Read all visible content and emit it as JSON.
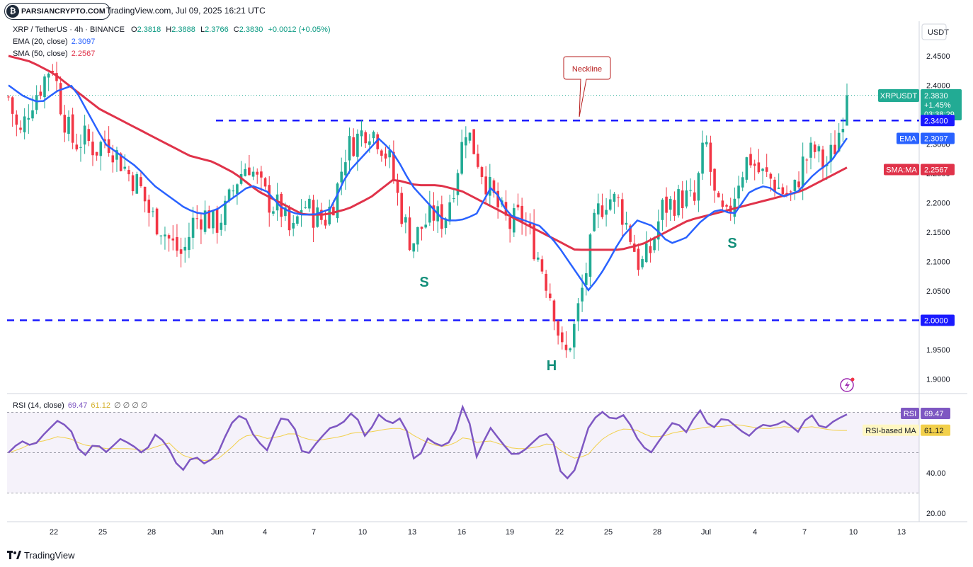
{
  "header": {
    "logo_text": "PARSIANCRYPTO.COM",
    "published": "TradingView.com, Jul 09, 2025 16:21 UTC"
  },
  "legend": {
    "symbol": "XRP / TetherUS · 4h · BINANCE",
    "o_label": "O",
    "o": "2.3818",
    "h_label": "H",
    "h": "2.3888",
    "l_label": "L",
    "l": "2.3766",
    "c_label": "C",
    "c": "2.3830",
    "change": "+0.0012 (+0.05%)",
    "ema_label": "EMA (20, close)",
    "ema_value": "2.3097",
    "sma_label": "SMA (50, close)",
    "sma_value": "2.2567",
    "rsi_label": "RSI (14, close)",
    "rsi_value": "69.47",
    "rsi_ma_value": "61.12",
    "rsi_extra": "∅ ∅ ∅ ∅"
  },
  "currency": "USDT",
  "price_axis": [
    "2.4500",
    "2.4000",
    "2.3500",
    "2.3000",
    "2.2500",
    "2.2000",
    "2.1500",
    "2.1000",
    "2.0500",
    "2.0000",
    "1.9500",
    "1.9000"
  ],
  "rsi_axis": [
    "60.00",
    "40.00",
    "20.00"
  ],
  "time_axis": [
    "22",
    "25",
    "28",
    "Jun",
    "4",
    "7",
    "10",
    "13",
    "16",
    "19",
    "22",
    "25",
    "28",
    "Jul",
    "4",
    "7",
    "10",
    "13"
  ],
  "price_tags": {
    "symbol_tag": "XRPUSDT",
    "last": "2.3830",
    "change_pct": "+1.45%",
    "countdown": "03:38:29",
    "level_high": "2.3400",
    "level_low": "2.0000",
    "ema_tag": "EMA",
    "ema_value": "2.3097",
    "sma_tag": "SMA:MA",
    "sma_value": "2.2567",
    "rsi_tag": "RSI",
    "rsi_value": "69.47",
    "rsi_ma_tag": "RSI-based MA",
    "rsi_ma_value": "61.12"
  },
  "annotations": {
    "neckline": "Neckline",
    "left_shoulder": "S",
    "head": "H",
    "right_shoulder": "S"
  },
  "footer": {
    "brand": "TradingView"
  },
  "colors": {
    "up": "#22ab94",
    "down": "#f23645",
    "ema": "#2962ff",
    "sma": "#e0334a",
    "level": "#1a1aff",
    "rsi": "#7e57c2",
    "rsi_ma": "#f2d04b",
    "pattern": "#138f7a"
  },
  "chart_data": {
    "type": "candlestick",
    "timeframe": "4h",
    "ylim": [
      1.88,
      2.48
    ],
    "levels": [
      2.34,
      2.0
    ],
    "close_path": [
      2.38,
      2.31,
      2.37,
      2.4,
      2.44,
      2.35,
      2.3,
      2.31,
      2.29,
      2.31,
      2.28,
      2.25,
      2.23,
      2.18,
      2.16,
      2.13,
      2.11,
      2.17,
      2.18,
      2.16,
      2.19,
      2.24,
      2.27,
      2.23,
      2.2,
      2.19,
      2.14,
      2.2,
      2.18,
      2.17,
      2.21,
      2.29,
      2.31,
      2.33,
      2.31,
      2.27,
      2.19,
      2.13,
      2.16,
      2.18,
      2.17,
      2.24,
      2.33,
      2.28,
      2.23,
      2.19,
      2.16,
      2.18,
      2.14,
      2.09,
      2.03,
      1.93,
      1.99,
      2.08,
      2.18,
      2.21,
      2.2,
      2.15,
      2.09,
      2.12,
      2.19,
      2.2,
      2.21,
      2.2,
      2.31,
      2.19,
      2.17,
      2.24,
      2.28,
      2.25,
      2.24,
      2.22,
      2.21,
      2.27,
      2.29,
      2.26,
      2.3,
      2.38
    ],
    "ema20_path": [
      2.4,
      2.38,
      2.37,
      2.39,
      2.4,
      2.35,
      2.3,
      2.28,
      2.26,
      2.23,
      2.21,
      2.19,
      2.18,
      2.19,
      2.21,
      2.23,
      2.22,
      2.19,
      2.18,
      2.18,
      2.19,
      2.25,
      2.28,
      2.31,
      2.28,
      2.23,
      2.2,
      2.17,
      2.17,
      2.18,
      2.23,
      2.18,
      2.17,
      2.16,
      2.13,
      2.09,
      2.05,
      2.09,
      2.14,
      2.17,
      2.16,
      2.13,
      2.14,
      2.17,
      2.19,
      2.18,
      2.22,
      2.23,
      2.21,
      2.22,
      2.25,
      2.27,
      2.31
    ],
    "sma50_path": [
      2.45,
      2.44,
      2.42,
      2.39,
      2.36,
      2.34,
      2.32,
      2.3,
      2.28,
      2.27,
      2.25,
      2.22,
      2.2,
      2.18,
      2.18,
      2.19,
      2.21,
      2.24,
      2.23,
      2.23,
      2.22,
      2.2,
      2.18,
      2.16,
      2.14,
      2.12,
      2.12,
      2.12,
      2.13,
      2.15,
      2.17,
      2.18,
      2.19,
      2.2,
      2.21,
      2.22,
      2.24,
      2.26
    ],
    "rsi14_path": [
      50,
      56,
      53,
      60,
      66,
      62,
      47,
      55,
      50,
      57,
      54,
      49,
      60,
      52,
      40,
      49,
      44,
      50,
      64,
      70,
      57,
      51,
      67,
      66,
      47,
      55,
      62,
      64,
      71,
      57,
      69,
      64,
      68,
      44,
      57,
      53,
      56,
      76,
      47,
      63,
      55,
      48,
      52,
      58,
      60,
      35,
      42,
      62,
      71,
      66,
      69,
      57,
      49,
      58,
      66,
      60,
      72,
      61,
      68,
      63,
      58,
      64,
      63,
      66,
      60,
      70,
      61,
      66,
      69
    ],
    "rsi_ma_path": [
      50,
      52,
      55,
      56,
      58,
      57,
      54,
      53,
      52,
      52,
      52,
      51,
      53,
      55,
      49,
      47,
      46,
      47,
      52,
      58,
      59,
      57,
      58,
      60,
      57,
      56,
      57,
      58,
      60,
      60,
      61,
      62,
      62,
      58,
      55,
      53,
      54,
      58,
      55,
      56,
      54,
      52,
      52,
      53,
      55,
      50,
      47,
      49,
      56,
      60,
      62,
      61,
      58,
      58,
      60,
      61,
      62,
      63,
      63,
      64,
      63,
      62,
      62,
      63,
      62,
      63,
      62,
      61,
      61
    ]
  }
}
